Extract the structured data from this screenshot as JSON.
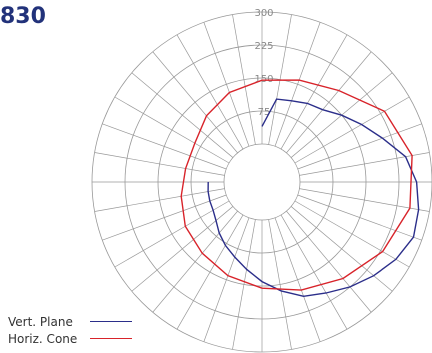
{
  "title": "830",
  "chart_data": {
    "type": "polar",
    "rings": [
      75,
      150,
      225,
      300
    ],
    "ring_labels": [
      "75",
      "150",
      "225",
      "300"
    ],
    "angular_step_deg": 10,
    "series": [
      {
        "name": "Vert. Plane",
        "color": "#2b2e8a",
        "angles_deg": [
          0,
          10,
          20,
          30,
          40,
          50,
          60,
          70,
          80,
          90,
          100,
          110,
          120,
          130,
          140,
          150,
          160,
          170,
          180,
          190,
          200,
          210,
          220,
          230,
          240,
          250,
          260,
          270
        ],
        "values": [
          40,
          105,
          110,
          120,
          128,
          150,
          175,
          205,
          245,
          265,
          275,
          280,
          265,
          245,
          225,
          205,
          190,
          165,
          140,
          115,
          95,
          80,
          65,
          50,
          42,
          40,
          38,
          36
        ]
      },
      {
        "name": "Horiz. Cone",
        "color": "#d8232a",
        "angles_deg": [
          0,
          20,
          40,
          60,
          80,
          100,
          120,
          140,
          160,
          180,
          200,
          220,
          240,
          260,
          280,
          300,
          320,
          340
        ],
        "values": [
          145,
          160,
          185,
          235,
          260,
          255,
          230,
          200,
          175,
          155,
          140,
          125,
          115,
          100,
          90,
          90,
          110,
          130
        ]
      }
    ],
    "legend": [
      {
        "label": "Vert. Plane",
        "color": "#2b2e8a"
      },
      {
        "label": "Horiz. Cone",
        "color": "#d8232a"
      }
    ]
  }
}
